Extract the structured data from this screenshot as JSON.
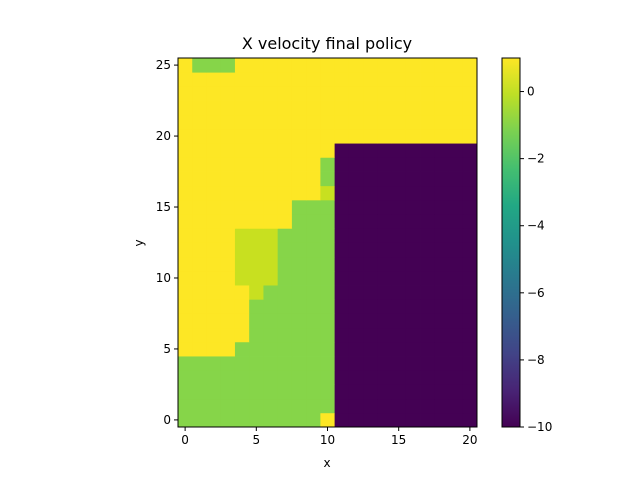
{
  "chart_data": {
    "type": "heatmap",
    "title": "X velocity final policy",
    "xlabel": "x",
    "ylabel": "y",
    "xlim": [
      -0.5,
      20.5
    ],
    "ylim": [
      -0.5,
      25.5
    ],
    "xticks": [
      0,
      5,
      10,
      15,
      20
    ],
    "yticks": [
      0,
      5,
      10,
      15,
      20,
      25
    ],
    "colormap": "viridis",
    "colorbar": {
      "vmin": -10,
      "vmax": 1,
      "ticks": [
        0,
        -2,
        -4,
        -6,
        -8,
        -10
      ]
    },
    "grid": false,
    "value_colors": {
      "1": "#fde725",
      "0": "#c8e020",
      "-1": "#86d549",
      "-10": "#440154"
    },
    "rows": [
      {
        "y": 0,
        "values": [
          -1,
          -1,
          -1,
          -1,
          -1,
          -1,
          -1,
          -1,
          -1,
          -1,
          1,
          -10,
          -10,
          -10,
          -10,
          -10,
          -10,
          -10,
          -10,
          -10,
          -10
        ]
      },
      {
        "y": 1,
        "values": [
          -1,
          -1,
          -1,
          -1,
          -1,
          -1,
          -1,
          -1,
          -1,
          -1,
          -1,
          -10,
          -10,
          -10,
          -10,
          -10,
          -10,
          -10,
          -10,
          -10,
          -10
        ]
      },
      {
        "y": 2,
        "values": [
          -1,
          -1,
          -1,
          -1,
          -1,
          -1,
          -1,
          -1,
          -1,
          -1,
          -1,
          -10,
          -10,
          -10,
          -10,
          -10,
          -10,
          -10,
          -10,
          -10,
          -10
        ]
      },
      {
        "y": 3,
        "values": [
          -1,
          -1,
          -1,
          -1,
          -1,
          -1,
          -1,
          -1,
          -1,
          -1,
          -1,
          -10,
          -10,
          -10,
          -10,
          -10,
          -10,
          -10,
          -10,
          -10,
          -10
        ]
      },
      {
        "y": 4,
        "values": [
          -1,
          -1,
          -1,
          -1,
          -1,
          -1,
          -1,
          -1,
          -1,
          -1,
          -1,
          -10,
          -10,
          -10,
          -10,
          -10,
          -10,
          -10,
          -10,
          -10,
          -10
        ]
      },
      {
        "y": 5,
        "values": [
          1,
          1,
          1,
          1,
          -1,
          -1,
          -1,
          -1,
          -1,
          -1,
          -1,
          -10,
          -10,
          -10,
          -10,
          -10,
          -10,
          -10,
          -10,
          -10,
          -10
        ]
      },
      {
        "y": 6,
        "values": [
          1,
          1,
          1,
          1,
          1,
          -1,
          -1,
          -1,
          -1,
          -1,
          -1,
          -10,
          -10,
          -10,
          -10,
          -10,
          -10,
          -10,
          -10,
          -10,
          -10
        ]
      },
      {
        "y": 7,
        "values": [
          1,
          1,
          1,
          1,
          1,
          -1,
          -1,
          -1,
          -1,
          -1,
          -1,
          -10,
          -10,
          -10,
          -10,
          -10,
          -10,
          -10,
          -10,
          -10,
          -10
        ]
      },
      {
        "y": 8,
        "values": [
          1,
          1,
          1,
          1,
          1,
          -1,
          -1,
          -1,
          -1,
          -1,
          -1,
          -10,
          -10,
          -10,
          -10,
          -10,
          -10,
          -10,
          -10,
          -10,
          -10
        ]
      },
      {
        "y": 9,
        "values": [
          1,
          1,
          1,
          1,
          1,
          0,
          -1,
          -1,
          -1,
          -1,
          -1,
          -10,
          -10,
          -10,
          -10,
          -10,
          -10,
          -10,
          -10,
          -10,
          -10
        ]
      },
      {
        "y": 10,
        "values": [
          1,
          1,
          1,
          1,
          0,
          0,
          0,
          -1,
          -1,
          -1,
          -1,
          -10,
          -10,
          -10,
          -10,
          -10,
          -10,
          -10,
          -10,
          -10,
          -10
        ]
      },
      {
        "y": 11,
        "values": [
          1,
          1,
          1,
          1,
          0,
          0,
          0,
          -1,
          -1,
          -1,
          -1,
          -10,
          -10,
          -10,
          -10,
          -10,
          -10,
          -10,
          -10,
          -10,
          -10
        ]
      },
      {
        "y": 12,
        "values": [
          1,
          1,
          1,
          1,
          0,
          0,
          0,
          -1,
          -1,
          -1,
          -1,
          -10,
          -10,
          -10,
          -10,
          -10,
          -10,
          -10,
          -10,
          -10,
          -10
        ]
      },
      {
        "y": 13,
        "values": [
          1,
          1,
          1,
          1,
          0,
          0,
          0,
          -1,
          -1,
          -1,
          -1,
          -10,
          -10,
          -10,
          -10,
          -10,
          -10,
          -10,
          -10,
          -10,
          -10
        ]
      },
      {
        "y": 14,
        "values": [
          1,
          1,
          1,
          1,
          1,
          1,
          1,
          1,
          -1,
          -1,
          -1,
          -10,
          -10,
          -10,
          -10,
          -10,
          -10,
          -10,
          -10,
          -10,
          -10
        ]
      },
      {
        "y": 15,
        "values": [
          1,
          1,
          1,
          1,
          1,
          1,
          1,
          1,
          -1,
          -1,
          -1,
          -10,
          -10,
          -10,
          -10,
          -10,
          -10,
          -10,
          -10,
          -10,
          -10
        ]
      },
      {
        "y": 16,
        "values": [
          1,
          1,
          1,
          1,
          1,
          1,
          1,
          1,
          1,
          1,
          0,
          -10,
          -10,
          -10,
          -10,
          -10,
          -10,
          -10,
          -10,
          -10,
          -10
        ]
      },
      {
        "y": 17,
        "values": [
          1,
          1,
          1,
          1,
          1,
          1,
          1,
          1,
          1,
          1,
          -1,
          -10,
          -10,
          -10,
          -10,
          -10,
          -10,
          -10,
          -10,
          -10,
          -10
        ]
      },
      {
        "y": 18,
        "values": [
          1,
          1,
          1,
          1,
          1,
          1,
          1,
          1,
          1,
          1,
          -1,
          -10,
          -10,
          -10,
          -10,
          -10,
          -10,
          -10,
          -10,
          -10,
          -10
        ]
      },
      {
        "y": 19,
        "values": [
          1,
          1,
          1,
          1,
          1,
          1,
          1,
          1,
          1,
          1,
          1,
          -10,
          -10,
          -10,
          -10,
          -10,
          -10,
          -10,
          -10,
          -10,
          -10
        ]
      },
      {
        "y": 20,
        "values": [
          1,
          1,
          1,
          1,
          1,
          1,
          1,
          1,
          1,
          1,
          1,
          1,
          1,
          1,
          1,
          1,
          1,
          1,
          1,
          1,
          1
        ]
      },
      {
        "y": 21,
        "values": [
          1,
          1,
          1,
          1,
          1,
          1,
          1,
          1,
          1,
          1,
          1,
          1,
          1,
          1,
          1,
          1,
          1,
          1,
          1,
          1,
          1
        ]
      },
      {
        "y": 22,
        "values": [
          1,
          1,
          1,
          1,
          1,
          1,
          1,
          1,
          1,
          1,
          1,
          1,
          1,
          1,
          1,
          1,
          1,
          1,
          1,
          1,
          1
        ]
      },
      {
        "y": 23,
        "values": [
          1,
          1,
          1,
          1,
          1,
          1,
          1,
          1,
          1,
          1,
          1,
          1,
          1,
          1,
          1,
          1,
          1,
          1,
          1,
          1,
          1
        ]
      },
      {
        "y": 24,
        "values": [
          1,
          1,
          1,
          1,
          1,
          1,
          1,
          1,
          1,
          1,
          1,
          1,
          1,
          1,
          1,
          1,
          1,
          1,
          1,
          1,
          1
        ]
      },
      {
        "y": 25,
        "values": [
          1,
          -1,
          -1,
          -1,
          1,
          1,
          1,
          1,
          1,
          1,
          1,
          1,
          1,
          1,
          1,
          1,
          1,
          1,
          1,
          1,
          1
        ]
      }
    ]
  }
}
